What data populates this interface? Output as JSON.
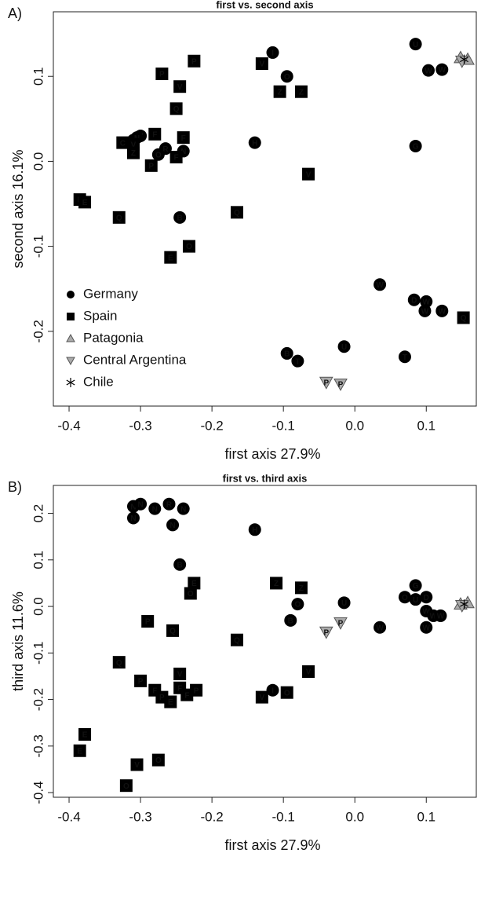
{
  "chart_data": [
    {
      "type": "scatter",
      "panel": "A)",
      "title": "first vs. second axis",
      "xlabel": "first axis 27.9%",
      "ylabel": "second axis  16.1%",
      "xlim": [
        -0.422,
        0.17
      ],
      "ylim": [
        -0.288,
        0.176
      ],
      "xticks": [
        -0.4,
        -0.3,
        -0.2,
        -0.1,
        {
          "value": 0,
          "label": "0.0"
        },
        0.1
      ],
      "yticks": [
        -0.2,
        -0.1,
        {
          "value": 0,
          "label": "0.0"
        },
        0.1
      ],
      "legend": "lower left",
      "series": [
        {
          "name": "Germany",
          "marker": "circle",
          "color": "#000000",
          "x": [
            0.085,
            -0.115,
            0.103,
            0.122,
            0.085,
            -0.14,
            -0.245,
            0.035,
            0.083,
            0.1,
            0.098,
            0.122,
            -0.015,
            0.07,
            -0.095,
            -0.08,
            -0.095,
            -0.31,
            -0.3,
            -0.265,
            -0.275,
            -0.24,
            -0.305
          ],
          "y": [
            0.138,
            0.128,
            0.107,
            0.108,
            0.018,
            0.022,
            -0.066,
            -0.145,
            -0.163,
            -0.165,
            -0.176,
            -0.176,
            -0.218,
            -0.23,
            -0.226,
            -0.235,
            0.1,
            0.025,
            0.03,
            0.015,
            0.008,
            0.012,
            0.028
          ],
          "labels": [
            "U",
            "I",
            "W",
            "W",
            "G",
            "H",
            "B",
            "W",
            "D",
            "W",
            "W",
            "W",
            "U",
            "T",
            "B",
            "T",
            "O",
            "N",
            "N",
            "R",
            "O",
            "N",
            "N"
          ]
        },
        {
          "name": "Spain",
          "marker": "square",
          "color": "#000000",
          "x": [
            -0.27,
            -0.225,
            -0.245,
            -0.25,
            -0.13,
            -0.105,
            -0.075,
            -0.28,
            -0.24,
            -0.325,
            -0.31,
            -0.31,
            -0.25,
            -0.285,
            -0.065,
            -0.385,
            -0.378,
            -0.33,
            -0.165,
            -0.232,
            -0.258,
            0.152
          ],
          "y": [
            0.103,
            0.118,
            0.088,
            0.062,
            0.115,
            0.082,
            0.082,
            0.032,
            0.028,
            0.022,
            0.02,
            0.01,
            0.005,
            -0.005,
            -0.015,
            -0.045,
            -0.048,
            -0.066,
            -0.06,
            -0.1,
            -0.113,
            -0.184
          ],
          "labels": [
            "P",
            "P",
            "V",
            "Q",
            "V",
            "Z",
            "Z",
            "F",
            "F",
            "C",
            "V",
            "Z",
            "F",
            "P",
            "V",
            "E",
            "E",
            "Q",
            "Q",
            "O",
            "E",
            "Q"
          ]
        },
        {
          "name": "Patagonia",
          "marker": "triangle-up",
          "color": "#aaaaaa",
          "x": [
            0.148,
            0.158
          ],
          "y": [
            0.122,
            0.12
          ],
          "labels": [
            null,
            null
          ]
        },
        {
          "name": "Central Argentina",
          "marker": "triangle-down",
          "color": "#aaaaaa",
          "x": [
            0.15,
            -0.04,
            -0.02
          ],
          "y": [
            0.118,
            -0.26,
            -0.262
          ],
          "labels": [
            null,
            "P",
            "P"
          ]
        },
        {
          "name": "Chile",
          "marker": "asterisk",
          "color": "#000000",
          "x": [
            0.153
          ],
          "y": [
            0.12
          ],
          "labels": [
            null
          ]
        }
      ]
    },
    {
      "type": "scatter",
      "panel": "B)",
      "title": "first vs. third axis",
      "xlabel": "first axis  27.9%",
      "ylabel": "third axis  11.6%",
      "xlim": [
        -0.422,
        0.17
      ],
      "ylim": [
        -0.41,
        0.26
      ],
      "xticks": [
        -0.4,
        -0.3,
        -0.2,
        -0.1,
        {
          "value": 0,
          "label": "0.0"
        },
        0.1
      ],
      "yticks": [
        -0.4,
        -0.3,
        -0.2,
        -0.1,
        {
          "value": 0,
          "label": "0.0"
        },
        0.1,
        0.2
      ],
      "legend": false,
      "series": [
        {
          "name": "Germany",
          "marker": "circle",
          "color": "#000000",
          "x": [
            -0.31,
            -0.3,
            -0.28,
            -0.26,
            -0.24,
            -0.31,
            -0.255,
            -0.14,
            -0.245,
            0.085,
            0.07,
            0.085,
            0.1,
            0.1,
            0.11,
            0.12,
            0.1,
            -0.08,
            -0.015,
            -0.09,
            0.035,
            -0.115
          ],
          "y": [
            0.215,
            0.22,
            0.21,
            0.22,
            0.21,
            0.19,
            0.175,
            0.165,
            0.09,
            0.045,
            0.02,
            0.015,
            0.02,
            -0.01,
            -0.02,
            -0.02,
            -0.045,
            0.005,
            0.008,
            -0.03,
            -0.045,
            -0.18
          ],
          "labels": [
            "N",
            "N",
            "N",
            "R",
            "N",
            "N",
            "N",
            "H",
            "B",
            "G",
            "O",
            "U",
            "D",
            "W",
            "W",
            "W",
            "W",
            "O",
            "U",
            "B",
            "W",
            "I"
          ]
        },
        {
          "name": "Spain",
          "marker": "square",
          "color": "#000000",
          "x": [
            -0.11,
            -0.075,
            -0.225,
            -0.23,
            -0.29,
            -0.255,
            -0.165,
            -0.33,
            -0.3,
            -0.245,
            -0.28,
            -0.27,
            -0.245,
            -0.258,
            -0.235,
            -0.222,
            -0.065,
            -0.13,
            -0.095,
            -0.378,
            -0.385,
            -0.305,
            -0.275,
            -0.32
          ],
          "y": [
            0.05,
            0.04,
            0.05,
            0.028,
            -0.032,
            -0.052,
            -0.072,
            -0.12,
            -0.16,
            -0.145,
            -0.18,
            -0.195,
            -0.175,
            -0.205,
            -0.19,
            -0.18,
            -0.14,
            -0.195,
            -0.185,
            -0.275,
            -0.31,
            -0.34,
            -0.33,
            -0.385
          ],
          "labels": [
            "Z",
            "Z",
            "E",
            "O",
            "P",
            "Q",
            "Q",
            "Q",
            "P",
            "V",
            "F",
            "P",
            "F",
            "E",
            "F",
            "P",
            "V",
            "V",
            "O",
            "E",
            "E",
            "V",
            "O",
            "O"
          ]
        },
        {
          "name": "Patagonia",
          "marker": "triangle-up",
          "color": "#aaaaaa",
          "x": [
            0.148,
            0.158
          ],
          "y": [
            0.005,
            0.008
          ],
          "labels": [
            null,
            null
          ]
        },
        {
          "name": "Central Argentina",
          "marker": "triangle-down",
          "color": "#aaaaaa",
          "x": [
            -0.04,
            -0.02,
            0.15
          ],
          "y": [
            -0.055,
            -0.035,
            0.002
          ],
          "labels": [
            "P",
            "P",
            null
          ]
        },
        {
          "name": "Chile",
          "marker": "asterisk",
          "color": "#000000",
          "x": [
            0.153
          ],
          "y": [
            0.005
          ],
          "labels": [
            null
          ]
        }
      ]
    }
  ]
}
